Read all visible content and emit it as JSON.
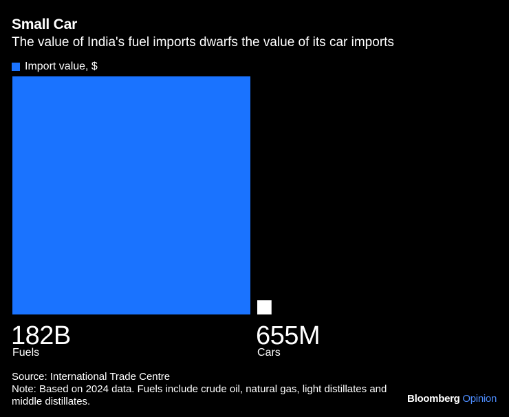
{
  "chart_data": {
    "type": "bar",
    "title": "Small Car",
    "subtitle": "The value of India's fuel imports dwarfs the value of its car imports",
    "legend": [
      {
        "label": "Import value, $",
        "color": "#1a73ff"
      }
    ],
    "categories": [
      "Fuels",
      "Cars"
    ],
    "values": [
      182000000000,
      655000000
    ],
    "value_labels": [
      "182B",
      "655M"
    ],
    "encoding": "square area proportional to value",
    "colors": [
      "#1a73ff",
      "#ffffff"
    ]
  },
  "footer": {
    "source": "Source: International Trade Centre",
    "note": "Note: Based on 2024 data. Fuels include crude oil, natural gas, light distillates and middle distillates."
  },
  "brand": {
    "name": "Bloomberg",
    "suffix": "Opinion",
    "suffix_color": "#4d8dff"
  }
}
